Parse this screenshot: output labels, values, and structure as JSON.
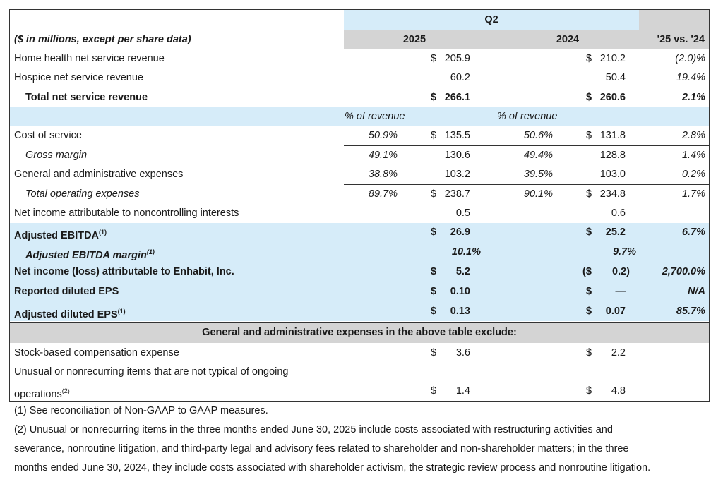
{
  "header": {
    "period": "Q2",
    "label_col": "($ in millions, except per share data)",
    "year1": "2025",
    "year2": "2024",
    "change": "'25 vs. '24"
  },
  "rows": {
    "home_health": {
      "label": "Home health net service revenue",
      "d1": "$",
      "v1": "205.9",
      "d2": "$",
      "v2": "210.2",
      "chg": "(2.0)%"
    },
    "hospice": {
      "label": "Hospice net service revenue",
      "v1": "60.2",
      "v2": "50.4",
      "chg": "19.4%"
    },
    "total_rev": {
      "label": "Total net service revenue",
      "d1": "$",
      "v1": "266.1",
      "d2": "$",
      "v2": "260.6",
      "chg": "2.1%"
    },
    "pct_hdr": {
      "p1": "% of revenue",
      "p2": "% of revenue"
    },
    "cost": {
      "label": "Cost of service",
      "p1": "50.9%",
      "d1": "$",
      "v1": "135.5",
      "p2": "50.6%",
      "d2": "$",
      "v2": "131.8",
      "chg": "2.8%"
    },
    "gross": {
      "label": "Gross margin",
      "p1": "49.1%",
      "v1": "130.6",
      "p2": "49.4%",
      "v2": "128.8",
      "chg": "1.4%"
    },
    "ga": {
      "label": "General and administrative expenses",
      "p1": "38.8%",
      "v1": "103.2",
      "p2": "39.5%",
      "v2": "103.0",
      "chg": "0.2%"
    },
    "opex": {
      "label": "Total operating expenses",
      "p1": "89.7%",
      "d1": "$",
      "v1": "238.7",
      "p2": "90.1%",
      "d2": "$",
      "v2": "234.8",
      "chg": "1.7%"
    },
    "nci": {
      "label": "Net income attributable to noncontrolling interests",
      "v1": "0.5",
      "v2": "0.6"
    },
    "ebitda": {
      "label": "Adjusted EBITDA",
      "sup": "(1)",
      "d1": "$",
      "v1": "26.9",
      "d2": "$",
      "v2": "25.2",
      "chg": "6.7%"
    },
    "ebitda_margin": {
      "label": "Adjusted EBITDA margin",
      "sup": "(1)",
      "v1": "10.1%",
      "v2": "9.7%"
    },
    "net_income": {
      "label": "Net income (loss) attributable to Enhabit, Inc.",
      "d1": "$",
      "v1": "5.2",
      "d2": "($",
      "v2": "0.2)",
      "chg": "2,700.0%"
    },
    "rep_eps": {
      "label": "Reported diluted EPS",
      "d1": "$",
      "v1": "0.10",
      "d2": "$",
      "v2": "—",
      "chg": "N/A"
    },
    "adj_eps": {
      "label": "Adjusted diluted EPS",
      "sup": "(1)",
      "d1": "$",
      "v1": "0.13",
      "d2": "$",
      "v2": "0.07",
      "chg": "85.7%"
    },
    "excl_hdr": {
      "label": "General and administrative expenses in the above table exclude:"
    },
    "sbc": {
      "label": "Stock-based compensation expense",
      "d1": "$",
      "v1": "3.6",
      "d2": "$",
      "v2": "2.2"
    },
    "unusual": {
      "label1": "Unusual or nonrecurring items that are not typical of ongoing",
      "label2": "operations",
      "sup": "(2)",
      "d1": "$",
      "v1": "1.4",
      "d2": "$",
      "v2": "4.8"
    }
  },
  "notes": {
    "n1": "(1) See reconciliation of Non-GAAP to GAAP measures.",
    "n2a": "(2) Unusual or nonrecurring items in the three months ended June 30, 2025 include costs associated with restructuring activities and",
    "n2b": "severance, nonroutine litigation, and third-party legal and advisory fees related to shareholder and non-shareholder matters; in the three",
    "n2c": "months ended June 30, 2024, they include costs associated with shareholder activism, the strategic review process and nonroutine litigation."
  }
}
